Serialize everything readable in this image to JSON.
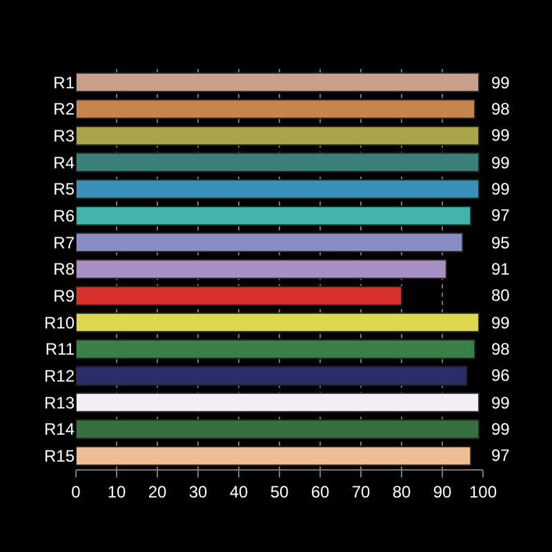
{
  "chart_data": {
    "type": "bar",
    "orientation": "horizontal",
    "categories": [
      "R1",
      "R2",
      "R3",
      "R4",
      "R5",
      "R6",
      "R7",
      "R8",
      "R9",
      "R10",
      "R11",
      "R12",
      "R13",
      "R14",
      "R15"
    ],
    "values": [
      99,
      98,
      99,
      99,
      99,
      97,
      95,
      91,
      80,
      99,
      98,
      96,
      99,
      99,
      97
    ],
    "colors": [
      "#c8a08c",
      "#c8844e",
      "#aaa44a",
      "#3a8078",
      "#3a90b8",
      "#44b4aa",
      "#8a8cc4",
      "#a890c4",
      "#d8302c",
      "#dcd850",
      "#3a8048",
      "#2a2e68",
      "#f2eef4",
      "#36703e",
      "#f0bc94"
    ],
    "xlim": [
      0,
      100
    ],
    "xticks": [
      0,
      10,
      20,
      30,
      40,
      50,
      60,
      70,
      80,
      90,
      100
    ],
    "grid": "x",
    "data_labels": true
  }
}
